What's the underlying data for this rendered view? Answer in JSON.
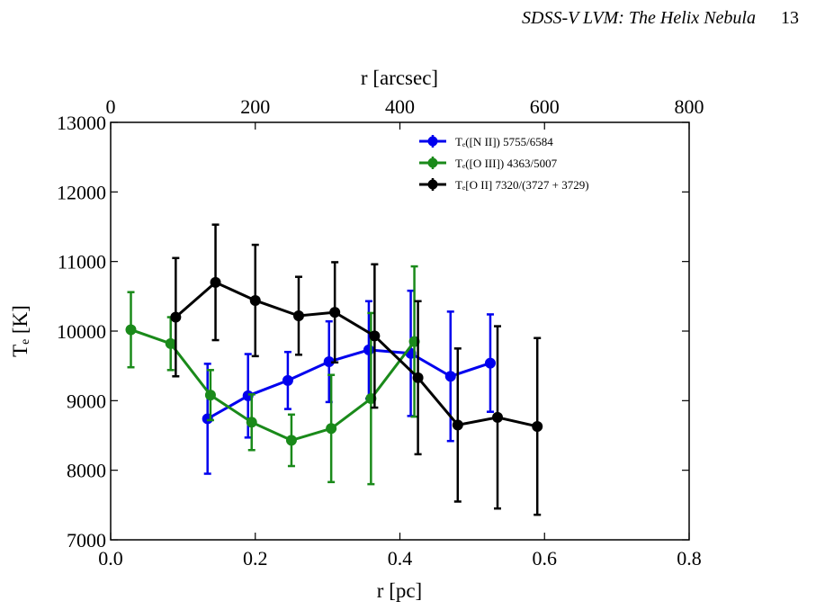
{
  "header": {
    "title": "SDSS-V LVM: The Helix Nebula",
    "page": "13"
  },
  "chart_data": {
    "type": "errorbar-line",
    "xlabel": "r [pc]",
    "ylabel": "Tₑ [K]",
    "x2label": "r [arcsec]",
    "xlim": [
      0,
      0.8
    ],
    "xticks": [
      {
        "value": 0,
        "label": "0.0"
      },
      0.2,
      0.4,
      0.6,
      0.8
    ],
    "x2lim": [
      0,
      800
    ],
    "x2ticks": [
      0,
      200,
      400,
      600,
      800
    ],
    "ylim": [
      7000,
      13000
    ],
    "yticks": [
      7000,
      8000,
      9000,
      10000,
      11000,
      12000,
      13000
    ],
    "legend": "upper right",
    "series": [
      {
        "name": "Tₑ([N II]) 5755/6584",
        "color": "#0000ee",
        "x": [
          0.134,
          0.19,
          0.245,
          0.302,
          0.357,
          0.415,
          0.47,
          0.525
        ],
        "values": [
          8740,
          9070,
          9290,
          9560,
          9730,
          9680,
          9350,
          9540
        ],
        "errors": [
          790,
          600,
          410,
          580,
          700,
          900,
          930,
          700
        ]
      },
      {
        "name": "Tₑ([O III]) 4363/5007",
        "color": "#1a8a1a",
        "x": [
          0.028,
          0.083,
          0.138,
          0.195,
          0.25,
          0.305,
          0.36,
          0.42
        ],
        "values": [
          10020,
          9820,
          9080,
          8690,
          8430,
          8600,
          9030,
          9850
        ],
        "errors": [
          540,
          380,
          360,
          400,
          370,
          770,
          1230,
          1080
        ]
      },
      {
        "name": "Tₑ[O II] 7320/(3727 + 3729)",
        "color": "#000000",
        "x": [
          0.09,
          0.145,
          0.2,
          0.26,
          0.31,
          0.365,
          0.425,
          0.48,
          0.535,
          0.59
        ],
        "values": [
          10200,
          10700,
          10440,
          10220,
          10270,
          9930,
          9330,
          8650,
          8760,
          8630
        ],
        "errors": [
          850,
          830,
          800,
          560,
          720,
          1030,
          1100,
          1100,
          1310,
          1270
        ]
      }
    ]
  }
}
